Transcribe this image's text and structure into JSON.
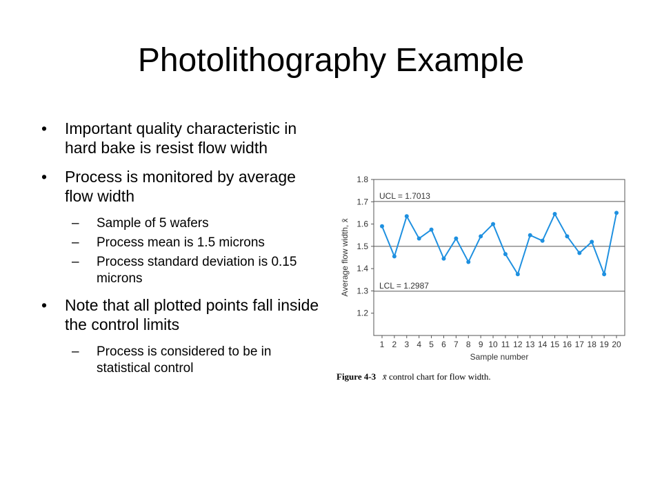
{
  "slide": {
    "title": "Photolithography Example",
    "bullets": [
      {
        "bullet": "•",
        "text": "Important quality characteristic in hard bake is resist flow width",
        "sub": []
      },
      {
        "bullet": "•",
        "text": "Process is monitored by average flow width",
        "sub": [
          {
            "dash": "–",
            "text": "Sample of 5 wafers"
          },
          {
            "dash": "–",
            "text": "Process mean is 1.5 microns"
          },
          {
            "dash": "–",
            "text": "Process standard deviation is 0.15 microns"
          }
        ]
      },
      {
        "bullet": "•",
        "text": "Note that all plotted points fall inside the control limits",
        "sub": [
          {
            "dash": "–",
            "text": "Process is considered to be in statistical control"
          }
        ]
      }
    ]
  },
  "figure": {
    "caption_label": "Figure 4-3",
    "caption_symbol": "x̄",
    "caption_text": " control chart for flow width."
  },
  "chart_data": {
    "type": "line",
    "xlabel": "Sample number",
    "ylabel": "Average flow width, x̄",
    "x": [
      1,
      2,
      3,
      4,
      5,
      6,
      7,
      8,
      9,
      10,
      11,
      12,
      13,
      14,
      15,
      16,
      17,
      18,
      19,
      20
    ],
    "series": [
      {
        "values": [
          1.59,
          1.455,
          1.635,
          1.535,
          1.575,
          1.445,
          1.535,
          1.43,
          1.545,
          1.6,
          1.465,
          1.375,
          1.55,
          1.525,
          1.645,
          1.545,
          1.47,
          1.52,
          1.375,
          1.65
        ]
      }
    ],
    "ylim": [
      1.1,
      1.8
    ],
    "yticks": [
      "1.2",
      "1.3",
      "1.4",
      "1.5",
      "1.6",
      "1.7",
      "1.8"
    ],
    "xticks": [
      "1",
      "2",
      "3",
      "4",
      "5",
      "6",
      "7",
      "8",
      "9",
      "10",
      "11",
      "12",
      "13",
      "14",
      "15",
      "16",
      "17",
      "18",
      "19",
      "20"
    ],
    "reference_lines": [
      {
        "value": 1.7013,
        "label": "UCL = 1.7013"
      },
      {
        "value": 1.5,
        "label": ""
      },
      {
        "value": 1.2987,
        "label": "LCL = 1.2987"
      }
    ],
    "line_color": "#1e90e0",
    "grid": false
  }
}
